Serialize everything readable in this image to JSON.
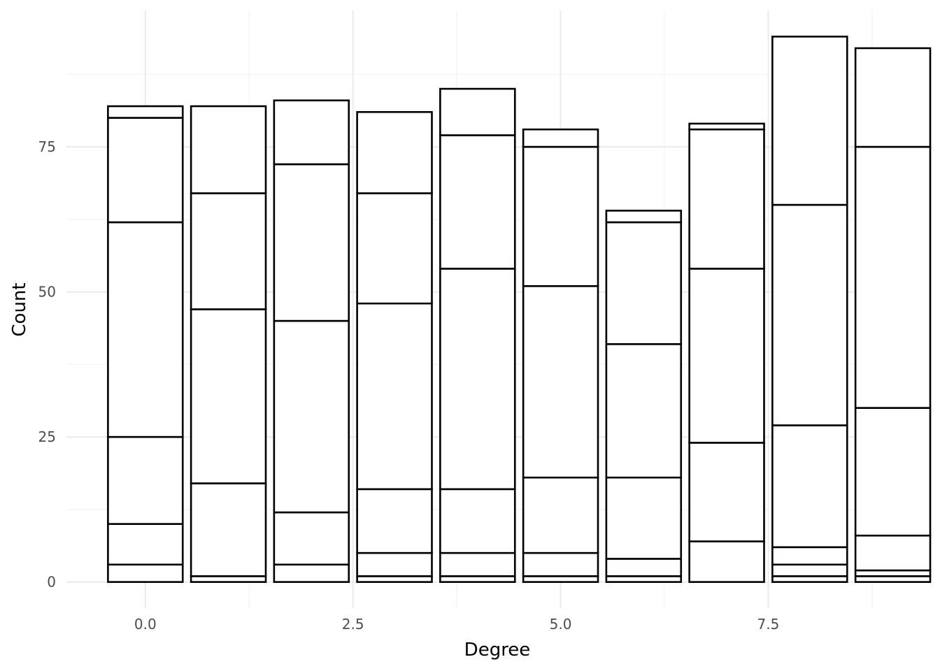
{
  "chart_data": {
    "type": "bar",
    "stacked": true,
    "xlabel": "Degree",
    "ylabel": "Count",
    "xlim": [
      -0.95,
      9.45
    ],
    "ylim": [
      -4.5,
      98.5
    ],
    "x_ticks": [
      0.0,
      2.5,
      5.0,
      7.5
    ],
    "x_tick_labels": [
      "0.0",
      "2.5",
      "5.0",
      "7.5"
    ],
    "y_ticks": [
      0,
      25,
      50,
      75
    ],
    "y_tick_labels": [
      "0",
      "25",
      "50",
      "75"
    ],
    "bar_width": 0.9,
    "grid": true,
    "fill_color": "#ffffff",
    "outline_color": "#000000",
    "x": [
      0,
      1,
      2,
      3,
      4,
      5,
      6,
      7,
      8,
      9
    ],
    "segment_boundaries": [
      [
        0,
        3,
        10,
        25,
        62,
        80,
        82
      ],
      [
        0,
        1,
        17,
        47,
        67,
        82
      ],
      [
        0,
        3,
        12,
        45,
        72,
        83
      ],
      [
        0,
        1,
        5,
        16,
        48,
        67,
        81
      ],
      [
        0,
        1,
        5,
        16,
        54,
        77,
        85
      ],
      [
        0,
        1,
        5,
        18,
        51,
        75,
        78
      ],
      [
        0,
        1,
        4,
        18,
        41,
        62,
        64
      ],
      [
        0,
        7,
        24,
        54,
        78,
        79
      ],
      [
        0,
        1,
        3,
        6,
        27,
        65,
        94
      ],
      [
        0,
        1,
        2,
        8,
        30,
        75,
        92
      ]
    ],
    "totals": [
      82,
      82,
      83,
      81,
      85,
      78,
      64,
      79,
      94,
      92
    ]
  }
}
